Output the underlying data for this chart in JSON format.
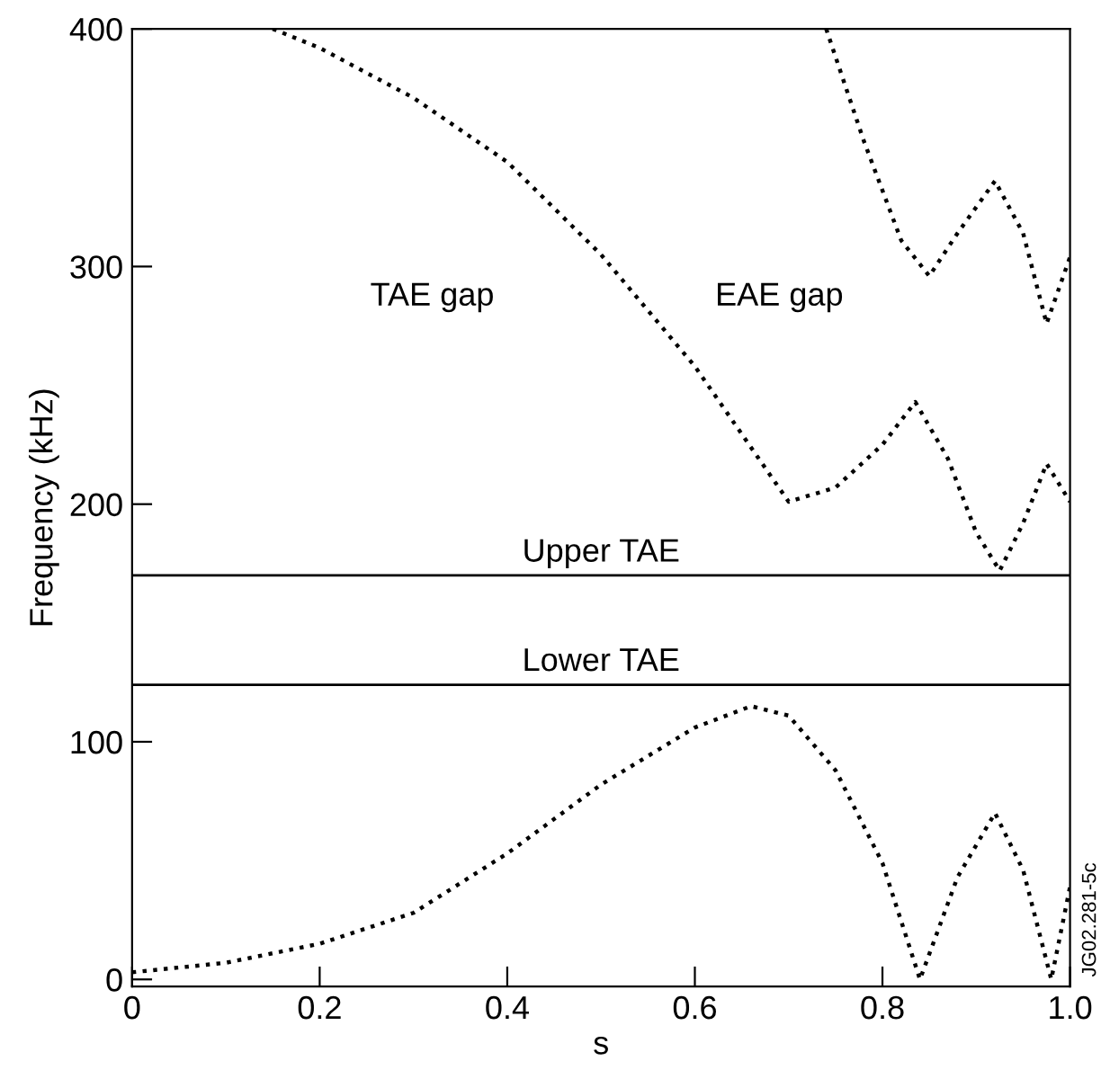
{
  "chart_data": {
    "type": "line",
    "xlabel": "s",
    "ylabel": "Frequency (kHz)",
    "xlim": [
      0,
      1
    ],
    "ylim": [
      -3,
      400
    ],
    "xticks": [
      0,
      0.2,
      0.4,
      0.6,
      {
        "value": 0.8,
        "label": "0.8"
      },
      {
        "value": 1.0,
        "label": "1.0"
      }
    ],
    "yticks": [
      0,
      100,
      200,
      300,
      400
    ],
    "grid": false,
    "legend": false,
    "line_style": "dotted",
    "marker": "none",
    "series": [
      {
        "color": "#000000",
        "x": [
          0,
          0.1,
          0.2,
          0.3,
          0.4,
          0.5,
          0.6,
          0.66,
          0.7,
          0.75,
          0.8,
          0.84,
          0.88,
          0.92,
          0.95,
          0.98,
          1.0
        ],
        "values": [
          3,
          7,
          15,
          28,
          53,
          82,
          106,
          115,
          111,
          88,
          49,
          0,
          43,
          70,
          46,
          0,
          39
        ]
      },
      {
        "color": "#000000",
        "x": [
          0.15,
          0.2,
          0.3,
          0.4,
          0.5,
          0.6,
          0.7,
          0.75,
          0.8,
          0.835,
          0.87,
          0.9,
          0.925,
          0.95,
          0.975,
          1.0
        ],
        "values": [
          400,
          392,
          371,
          344,
          305,
          258,
          201,
          207,
          225,
          243,
          219,
          188,
          172,
          192,
          217,
          201
        ]
      },
      {
        "color": "#000000",
        "x": [
          0.74,
          0.78,
          0.82,
          0.85,
          0.88,
          0.92,
          0.95,
          0.975,
          1.0
        ],
        "values": [
          400,
          353,
          311,
          296,
          314,
          336,
          314,
          276,
          304
        ]
      }
    ],
    "ref_lines": [
      {
        "axis": "y",
        "value": 170,
        "label": "Upper TAE",
        "color": "#000000"
      },
      {
        "axis": "y",
        "value": 124,
        "label": "Lower TAE",
        "color": "#000000"
      }
    ],
    "annotations": [
      "TAE gap",
      "EAE gap",
      "JG02.281-5c"
    ]
  }
}
